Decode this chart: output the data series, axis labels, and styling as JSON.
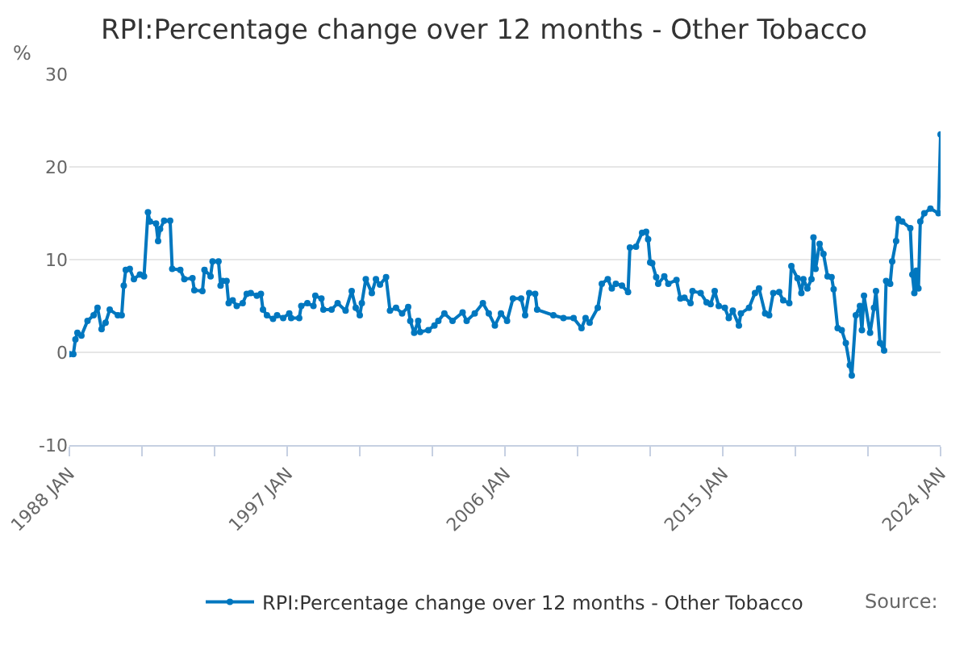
{
  "chart_data": {
    "type": "line",
    "title": "RPI:Percentage change over 12 months - Other Tobacco",
    "ylabel": "%",
    "x": [
      "1988-01",
      "1988-03",
      "1988-04",
      "1988-05",
      "1988-07",
      "1988-10",
      "1989-01",
      "1989-03",
      "1989-05",
      "1989-07",
      "1989-09",
      "1990-01",
      "1990-03",
      "1990-04",
      "1990-05",
      "1990-07",
      "1990-09",
      "1990-12",
      "1991-02",
      "1991-04",
      "1991-05",
      "1991-08",
      "1991-09",
      "1991-10",
      "1991-12",
      "1992-03",
      "1992-04",
      "1992-08",
      "1992-10",
      "1993-02",
      "1993-03",
      "1993-07",
      "1993-08",
      "1993-11",
      "1993-12",
      "1994-03",
      "1994-04",
      "1994-05",
      "1994-07",
      "1994-08",
      "1994-10",
      "1994-12",
      "1995-03",
      "1995-05",
      "1995-07",
      "1995-10",
      "1995-12",
      "1996-01",
      "1996-03",
      "1996-06",
      "1996-08",
      "1996-11",
      "1997-02",
      "1997-03",
      "1997-07",
      "1997-08",
      "1997-11",
      "1998-02",
      "1998-03",
      "1998-06",
      "1998-07",
      "1998-11",
      "1999-02",
      "1999-06",
      "1999-09",
      "1999-11",
      "2000-01",
      "2000-02",
      "2000-04",
      "2000-07",
      "2000-09",
      "2000-11",
      "2001-02",
      "2001-04",
      "2001-07",
      "2001-10",
      "2002-01",
      "2002-02",
      "2002-04",
      "2002-06",
      "2002-07",
      "2002-11",
      "2003-02",
      "2003-04",
      "2003-07",
      "2003-11",
      "2004-04",
      "2004-06",
      "2004-10",
      "2005-02",
      "2005-05",
      "2005-08",
      "2005-11",
      "2006-02",
      "2006-05",
      "2006-09",
      "2006-11",
      "2007-01",
      "2007-04",
      "2007-05",
      "2008-01",
      "2008-06",
      "2008-11",
      "2009-03",
      "2009-05",
      "2009-07",
      "2009-11",
      "2010-01",
      "2010-04",
      "2010-06",
      "2010-08",
      "2010-11",
      "2011-02",
      "2011-03",
      "2011-06",
      "2011-09",
      "2011-11",
      "2011-12",
      "2012-01",
      "2012-02",
      "2012-04",
      "2012-05",
      "2012-08",
      "2012-10",
      "2013-02",
      "2013-04",
      "2013-06",
      "2013-09",
      "2013-10",
      "2014-02",
      "2014-05",
      "2014-07",
      "2014-09",
      "2014-11",
      "2015-02",
      "2015-04",
      "2015-06",
      "2015-09",
      "2015-10",
      "2016-02",
      "2016-05",
      "2016-07",
      "2016-10",
      "2016-12",
      "2017-02",
      "2017-05",
      "2017-07",
      "2017-10",
      "2017-11",
      "2018-02",
      "2018-04",
      "2018-05",
      "2018-07",
      "2018-09",
      "2018-10",
      "2018-11",
      "2019-01",
      "2019-03",
      "2019-05",
      "2019-07",
      "2019-08",
      "2019-10",
      "2019-12",
      "2020-02",
      "2020-04",
      "2020-05",
      "2020-07",
      "2020-09",
      "2020-10",
      "2020-11",
      "2021-02",
      "2021-04",
      "2021-05",
      "2021-07",
      "2021-09",
      "2021-10",
      "2021-12",
      "2022-01",
      "2022-03",
      "2022-04",
      "2022-06",
      "2022-10",
      "2022-11",
      "2022-12",
      "2023-01",
      "2023-02",
      "2023-03",
      "2023-05",
      "2023-08",
      "2023-12",
      "2024-01"
    ],
    "series": [
      {
        "name": "RPI:Percentage change over 12 months - Other Tobacco",
        "color": "#0077bf",
        "values": [
          -0.2,
          -0.2,
          1.4,
          2.1,
          1.8,
          3.4,
          4.0,
          4.8,
          2.5,
          3.2,
          4.6,
          4.0,
          4.0,
          7.2,
          8.9,
          9.0,
          7.9,
          8.4,
          8.2,
          15.1,
          14.1,
          13.9,
          12.0,
          13.3,
          14.2,
          14.2,
          9.0,
          8.9,
          7.9,
          8.0,
          6.7,
          6.6,
          8.9,
          8.2,
          9.8,
          9.8,
          7.2,
          7.7,
          7.7,
          5.3,
          5.6,
          5.0,
          5.3,
          6.3,
          6.4,
          6.1,
          6.3,
          4.6,
          4.0,
          3.6,
          4.0,
          3.7,
          4.2,
          3.7,
          3.7,
          5.0,
          5.3,
          5.0,
          6.1,
          5.8,
          4.6,
          4.6,
          5.3,
          4.5,
          6.6,
          4.8,
          4.0,
          5.3,
          7.9,
          6.4,
          7.9,
          7.3,
          8.1,
          4.5,
          4.8,
          4.2,
          4.9,
          3.4,
          2.1,
          3.4,
          2.2,
          2.4,
          2.9,
          3.4,
          4.2,
          3.4,
          4.3,
          3.4,
          4.2,
          5.3,
          4.2,
          2.9,
          4.2,
          3.4,
          5.8,
          5.8,
          4.0,
          6.4,
          6.3,
          4.6,
          4.0,
          3.7,
          3.7,
          2.6,
          3.7,
          3.2,
          4.8,
          7.4,
          7.9,
          6.9,
          7.4,
          7.2,
          6.5,
          11.3,
          11.4,
          12.9,
          13.0,
          12.2,
          9.7,
          9.6,
          8.1,
          7.4,
          8.2,
          7.4,
          7.8,
          5.8,
          5.9,
          5.3,
          6.6,
          6.4,
          5.4,
          5.2,
          6.6,
          5.0,
          4.8,
          3.7,
          4.5,
          2.9,
          4.2,
          4.8,
          6.4,
          6.9,
          4.2,
          4.0,
          6.4,
          6.5,
          5.6,
          5.3,
          9.3,
          8.0,
          6.4,
          7.9,
          6.9,
          7.9,
          12.4,
          9.0,
          11.7,
          10.6,
          8.2,
          8.1,
          6.8,
          2.6,
          2.4,
          1.0,
          -1.4,
          -2.5,
          4.0,
          5.0,
          2.4,
          6.1,
          2.1,
          4.8,
          6.6,
          1.0,
          0.2,
          7.7,
          7.4,
          9.8,
          12.0,
          14.4,
          14.1,
          13.4,
          8.4,
          6.4,
          8.8,
          6.9,
          14.1,
          15.0,
          15.5,
          15.0,
          23.5
        ]
      }
    ],
    "xlim": [
      "1988-01",
      "2024-01"
    ],
    "xticks": [
      {
        "value": "1988-01",
        "label": "1988 JAN"
      },
      {
        "value": "1991-01",
        "label": null
      },
      {
        "value": "1994-01",
        "label": null
      },
      {
        "value": "1997-01",
        "label": "1997 JAN"
      },
      {
        "value": "2000-01",
        "label": null
      },
      {
        "value": "2003-01",
        "label": null
      },
      {
        "value": "2006-01",
        "label": "2006 JAN"
      },
      {
        "value": "2009-01",
        "label": null
      },
      {
        "value": "2012-01",
        "label": null
      },
      {
        "value": "2015-01",
        "label": "2015 JAN"
      },
      {
        "value": "2018-01",
        "label": null
      },
      {
        "value": "2021-01",
        "label": null
      },
      {
        "value": "2024-01",
        "label": "2024 JAN"
      }
    ],
    "ylim": [
      -10,
      30
    ],
    "yticks": [
      -10,
      0,
      10,
      20,
      30
    ],
    "grid": "y",
    "legend": "bottom",
    "marker": "circle",
    "line_style": "solid",
    "annotations": [
      "Source:"
    ]
  }
}
